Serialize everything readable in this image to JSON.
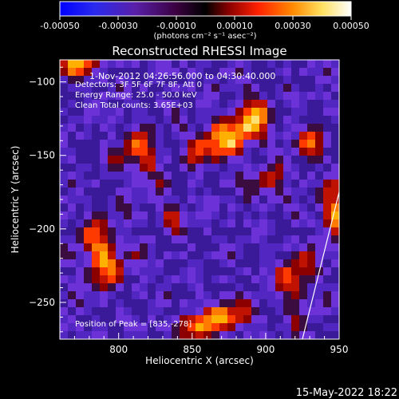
{
  "chart_data": {
    "type": "heatmap",
    "title": "Reconstructed RHESSI Image",
    "colorbar": {
      "tick_labels": [
        "-0.00050",
        "-0.00030",
        "-0.00010",
        "0.00010",
        "0.00030",
        "0.00050"
      ],
      "unit_label": "(photons cm⁻² s⁻¹ asec⁻²)",
      "range": [
        -0.0005,
        0.0005
      ],
      "colormap": [
        "#0000ff",
        "#5a00a8",
        "#000000",
        "#9a0000",
        "#ff3000",
        "#ff9a00",
        "#ffff60",
        "#ffffff"
      ]
    },
    "xlabel": "Heliocentric X (arcsec)",
    "ylabel": "Heliocentric Y (arcsec)",
    "xlim": [
      760,
      950
    ],
    "ylim": [
      -275,
      -85
    ],
    "x_ticks": [
      {
        "v": 800,
        "label": "800"
      },
      {
        "v": 850,
        "label": "850"
      },
      {
        "v": 900,
        "label": "900"
      },
      {
        "v": 950,
        "label": "950"
      }
    ],
    "y_ticks": [
      {
        "v": -100,
        "label": "−100"
      },
      {
        "v": -150,
        "label": "−150"
      },
      {
        "v": -200,
        "label": "−200"
      },
      {
        "v": -250,
        "label": "−250"
      }
    ],
    "annotations": {
      "time": "1-Nov-2012 04:26:56.000 to 04:30:40.000",
      "detectors": "Detectors: 3F 5F 6F 7F 8F, Att 0",
      "energy": "Energy Range: 25.0 - 50.0 keV",
      "clean": "Clean    Total counts: 3.65E+03",
      "peak": "Position of Peak = [835,-278]"
    },
    "peak_position": [
      835,
      -278
    ],
    "limb_line": [
      [
        925,
        -275
      ],
      [
        950,
        -175
      ]
    ],
    "image_colors": {
      "dominant": "#6b2ad0",
      "hot": "#ff5a00",
      "background": "#000000"
    }
  },
  "footer": {
    "timestamp": "15-May-2022 18:22"
  }
}
